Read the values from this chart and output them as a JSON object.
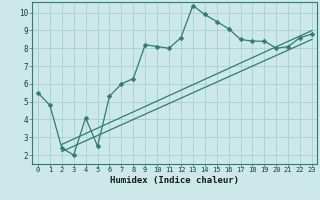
{
  "xlabel": "Humidex (Indice chaleur)",
  "bg_color": "#cce8e8",
  "grid_color": "#aad0d0",
  "line_color": "#2e7d6e",
  "spine_color": "#2e7d6e",
  "xlim": [
    -0.5,
    23.4
  ],
  "ylim": [
    1.5,
    10.6
  ],
  "xticks": [
    0,
    1,
    2,
    3,
    4,
    5,
    6,
    7,
    8,
    9,
    10,
    11,
    12,
    13,
    14,
    15,
    16,
    17,
    18,
    19,
    20,
    21,
    22,
    23
  ],
  "yticks": [
    2,
    3,
    4,
    5,
    6,
    7,
    8,
    9,
    10
  ],
  "line1_x": [
    0,
    1,
    2,
    3,
    4,
    5,
    6,
    7,
    8,
    9,
    10,
    11,
    12,
    13,
    14,
    15,
    16,
    17,
    18,
    19,
    20,
    21,
    22,
    23
  ],
  "line1_y": [
    5.5,
    4.8,
    2.4,
    2.0,
    4.1,
    2.5,
    5.3,
    6.0,
    6.3,
    8.2,
    8.1,
    8.0,
    8.6,
    10.4,
    9.9,
    9.5,
    9.1,
    8.5,
    8.4,
    8.4,
    8.0,
    8.1,
    8.6,
    8.8
  ],
  "line2_x": [
    2,
    23
  ],
  "line2_y": [
    2.6,
    9.0
  ],
  "line3_x": [
    2,
    23
  ],
  "line3_y": [
    2.2,
    8.5
  ],
  "markersize": 2.5,
  "linewidth": 0.9,
  "tick_fontsize": 5.0,
  "xlabel_fontsize": 6.5
}
